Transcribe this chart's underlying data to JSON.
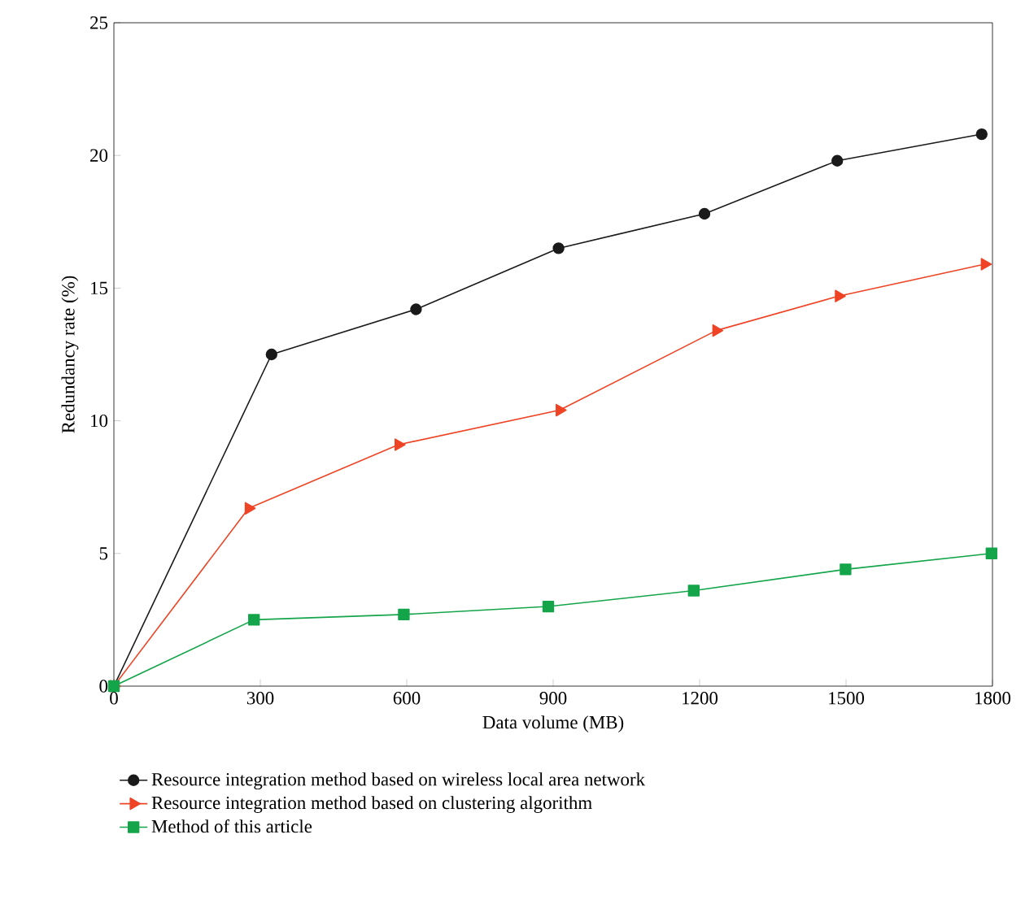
{
  "chart_data": {
    "type": "line",
    "xlabel": "Data volume (MB)",
    "ylabel": "Redundancy rate (%)",
    "xlim": [
      0,
      1800
    ],
    "xticks": [
      0,
      300,
      600,
      900,
      1200,
      1500,
      1800
    ],
    "ylim": [
      0,
      25
    ],
    "yticks": [
      0,
      5,
      10,
      15,
      20,
      25
    ],
    "grid": false,
    "legend": "bottom",
    "series": [
      {
        "name": "Resource integration method based on wireless local area network",
        "color": "#1a1a1a",
        "marker": "circle",
        "x": [
          0,
          323,
          619,
          911,
          1210,
          1482,
          1778
        ],
        "values": [
          0,
          12.5,
          14.2,
          16.5,
          17.8,
          19.8,
          20.8
        ]
      },
      {
        "name": "Resource integration method based on clustering algorithm",
        "color": "#ee4425",
        "marker": "triangle",
        "x": [
          0,
          276,
          583,
          913,
          1234,
          1485,
          1784
        ],
        "values": [
          0,
          6.7,
          9.1,
          10.4,
          13.4,
          14.7,
          15.9
        ]
      },
      {
        "name": "Method of this article",
        "color": "#14a54a",
        "marker": "square",
        "x": [
          0,
          287,
          594,
          890,
          1188,
          1499,
          1798
        ],
        "values": [
          0,
          2.5,
          2.7,
          3.0,
          3.6,
          4.4,
          5.0
        ]
      }
    ]
  }
}
